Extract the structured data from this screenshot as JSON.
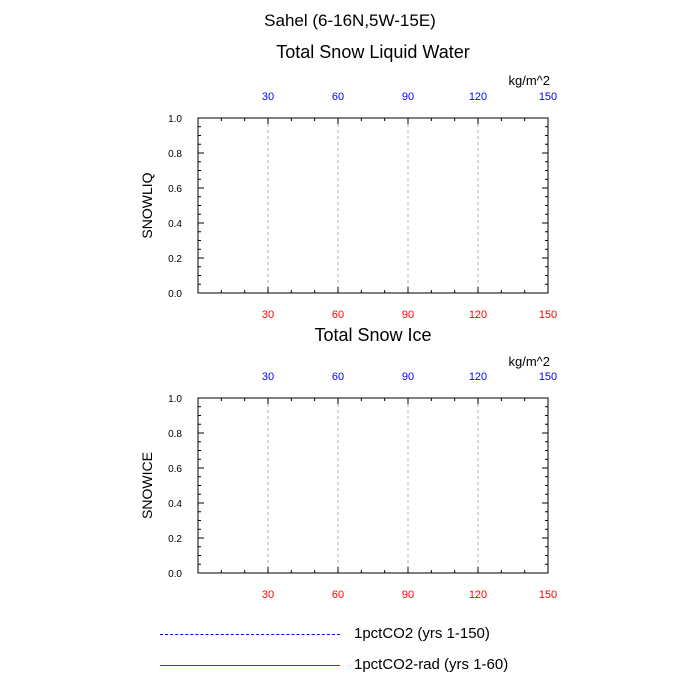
{
  "main_title": "Sahel (6-16N,5W-15E)",
  "colors": {
    "axis": "#000000",
    "grid": "#b0b0b0",
    "top_ticks": "#0000ff",
    "bottom_ticks": "#ff0000"
  },
  "legend": [
    {
      "label": "1pctCO2 (yrs 1-150)",
      "color": "#0000ff",
      "style": "dashed"
    },
    {
      "label": "1pctCO2-rad (yrs 1-60)",
      "color": "#ff0000",
      "style": "solid"
    }
  ],
  "chart_data": [
    {
      "type": "line",
      "title": "Total Snow Liquid Water",
      "ylabel": "SNOWLIQ",
      "units": "kg/m^2",
      "xlim": [
        0,
        150
      ],
      "ylim": [
        0,
        1
      ],
      "x_ticks_top": [
        "30",
        "60",
        "90",
        "120",
        "150"
      ],
      "x_ticks_bottom": [
        "30",
        "60",
        "90",
        "120",
        "150"
      ],
      "x_tick_values": [
        30,
        60,
        90,
        120,
        150
      ],
      "y_ticks": [
        "0.0",
        "0.2",
        "0.4",
        "0.6",
        "0.8",
        "1.0"
      ],
      "y_tick_values": [
        0,
        0.2,
        0.4,
        0.6,
        0.8,
        1.0
      ],
      "grid": "vertical dashed at x ticks",
      "series": [
        {
          "name": "1pctCO2 (yrs 1-150)",
          "x": [
            0,
            150
          ],
          "values": [
            0,
            0
          ]
        },
        {
          "name": "1pctCO2-rad (yrs 1-60)",
          "x": [
            0,
            60
          ],
          "values": [
            0,
            0
          ]
        }
      ]
    },
    {
      "type": "line",
      "title": "Total Snow Ice",
      "ylabel": "SNOWICE",
      "units": "kg/m^2",
      "xlim": [
        0,
        150
      ],
      "ylim": [
        0,
        1
      ],
      "x_ticks_top": [
        "30",
        "60",
        "90",
        "120",
        "150"
      ],
      "x_ticks_bottom": [
        "30",
        "60",
        "90",
        "120",
        "150"
      ],
      "x_tick_values": [
        30,
        60,
        90,
        120,
        150
      ],
      "y_ticks": [
        "0.0",
        "0.2",
        "0.4",
        "0.6",
        "0.8",
        "1.0"
      ],
      "y_tick_values": [
        0,
        0.2,
        0.4,
        0.6,
        0.8,
        1.0
      ],
      "grid": "vertical dashed at x ticks",
      "series": [
        {
          "name": "1pctCO2 (yrs 1-150)",
          "x": [
            0,
            150
          ],
          "values": [
            0,
            0
          ]
        },
        {
          "name": "1pctCO2-rad (yrs 1-60)",
          "x": [
            0,
            60
          ],
          "values": [
            0,
            0
          ]
        }
      ]
    }
  ]
}
